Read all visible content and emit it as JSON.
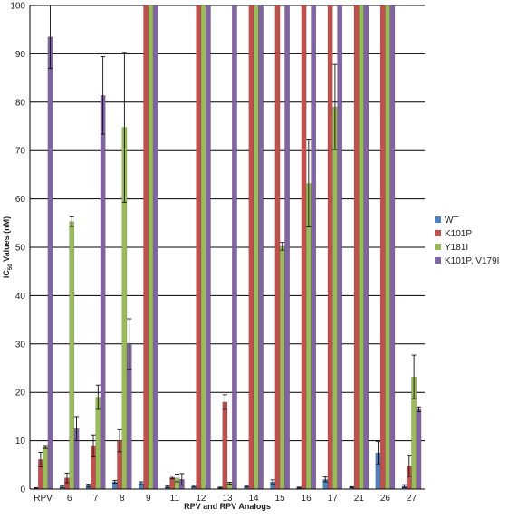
{
  "chart_data": {
    "type": "bar",
    "xlabel": "RPV and RPV Analogs",
    "ylabel": "IC",
    "ylabel_sub": "50",
    "ylabel_rest": " Values (nM)",
    "ylim": [
      0,
      100
    ],
    "yticks": [
      0,
      10,
      20,
      30,
      40,
      50,
      60,
      70,
      80,
      90,
      100
    ],
    "grid": true,
    "legend_position": "right",
    "categories": [
      "RPV",
      "6",
      "7",
      "8",
      "9",
      "11",
      "12",
      "13",
      "14",
      "15",
      "16",
      "17",
      "21",
      "26",
      "27"
    ],
    "series": [
      {
        "name": "WT",
        "color": "#4f81bd",
        "values": [
          0.2,
          0.5,
          0.7,
          1.5,
          1.2,
          0.5,
          0.6,
          0.3,
          0.5,
          1.5,
          0.3,
          2.0,
          0.4,
          7.5,
          0.6
        ],
        "errors": [
          0.1,
          0.2,
          0.3,
          0.3,
          0.3,
          0.2,
          0.2,
          0.1,
          0.1,
          0.4,
          0.1,
          0.5,
          0.1,
          2.3,
          0.3
        ]
      },
      {
        "name": "K101P",
        "color": "#c0504d",
        "values": [
          6.1,
          2.3,
          9.0,
          10.0,
          100,
          2.4,
          100,
          18.0,
          100,
          100,
          100,
          100,
          100,
          100,
          4.8
        ],
        "errors": [
          1.5,
          1.0,
          2.2,
          2.3,
          0,
          0.3,
          0,
          1.5,
          0,
          0,
          0,
          0,
          0,
          0,
          2.2
        ]
      },
      {
        "name": "Y181I",
        "color": "#9bbb59",
        "values": [
          8.7,
          55.3,
          19.0,
          74.8,
          100,
          2.3,
          100,
          1.2,
          100,
          50.2,
          63.2,
          79.0,
          100,
          100,
          23.2
        ],
        "errors": [
          0.3,
          1.0,
          2.5,
          15.5,
          0,
          0.8,
          0,
          0.2,
          0,
          0.8,
          9.0,
          8.8,
          0,
          0,
          4.5
        ]
      },
      {
        "name": "K101P, V179I",
        "color": "#8064a2",
        "values": [
          93.5,
          12.5,
          81.4,
          30.0,
          100,
          2.0,
          100,
          100,
          100,
          100,
          100,
          100,
          100,
          100,
          16.5
        ],
        "errors": [
          6.5,
          2.5,
          8.0,
          5.2,
          0,
          1.2,
          0,
          0,
          0,
          0,
          0,
          0,
          0,
          0,
          0.5
        ]
      }
    ]
  }
}
